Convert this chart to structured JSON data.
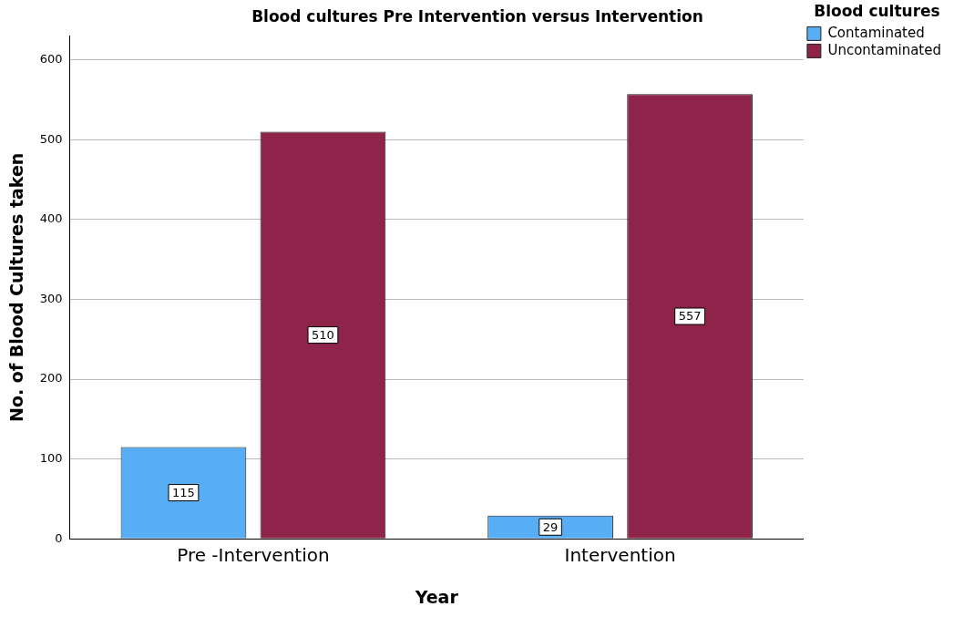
{
  "chart_data": {
    "type": "bar",
    "title": "Blood cultures Pre Intervention versus Intervention",
    "xlabel": "Year",
    "ylabel": "No. of Blood Cultures taken",
    "legend_title": "Blood cultures",
    "categories": [
      "Pre -Intervention",
      "Intervention"
    ],
    "series": [
      {
        "name": "Contaminated",
        "color": "#58aef5",
        "values": [
          115,
          29
        ]
      },
      {
        "name": "Uncontaminated",
        "color": "#8f244a",
        "values": [
          510,
          557
        ]
      }
    ],
    "ylim": [
      0,
      630
    ],
    "yticks": [
      0,
      100,
      200,
      300,
      400,
      500,
      600
    ],
    "grid": "y",
    "legend": "top right",
    "data_labels": true
  }
}
